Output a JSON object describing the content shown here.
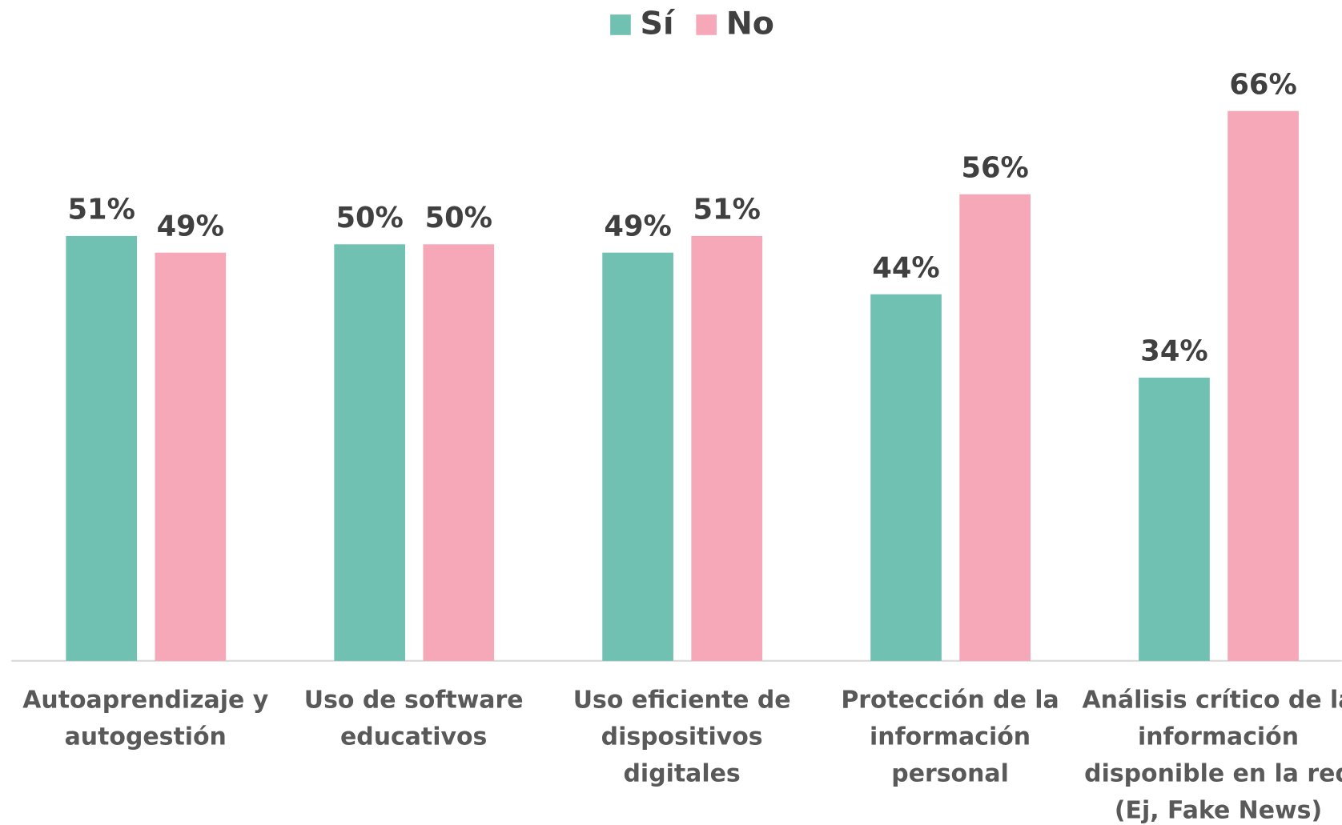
{
  "chart_data": {
    "type": "bar",
    "categories": [
      "Autoaprendizaje y\nautogestión",
      "Uso de software\neducativos",
      "Uso eficiente de\ndispositivos digitales",
      "Protección de la\ninformación personal",
      "Análisis crítico de la\ninformación\ndisponible en la red\n(Ej, Fake News)"
    ],
    "series": [
      {
        "name": "Sí",
        "color": "#71c1b3",
        "values": [
          51,
          50,
          49,
          44,
          34
        ],
        "value_labels": [
          "51%",
          "50%",
          "49%",
          "44%",
          "34%"
        ]
      },
      {
        "name": "No",
        "color": "#f7a8b8",
        "values": [
          49,
          50,
          51,
          56,
          66
        ],
        "value_labels": [
          "49%",
          "50%",
          "51%",
          "56%",
          "66%"
        ]
      }
    ],
    "ylim": [
      0,
      70
    ],
    "legend": "top"
  }
}
